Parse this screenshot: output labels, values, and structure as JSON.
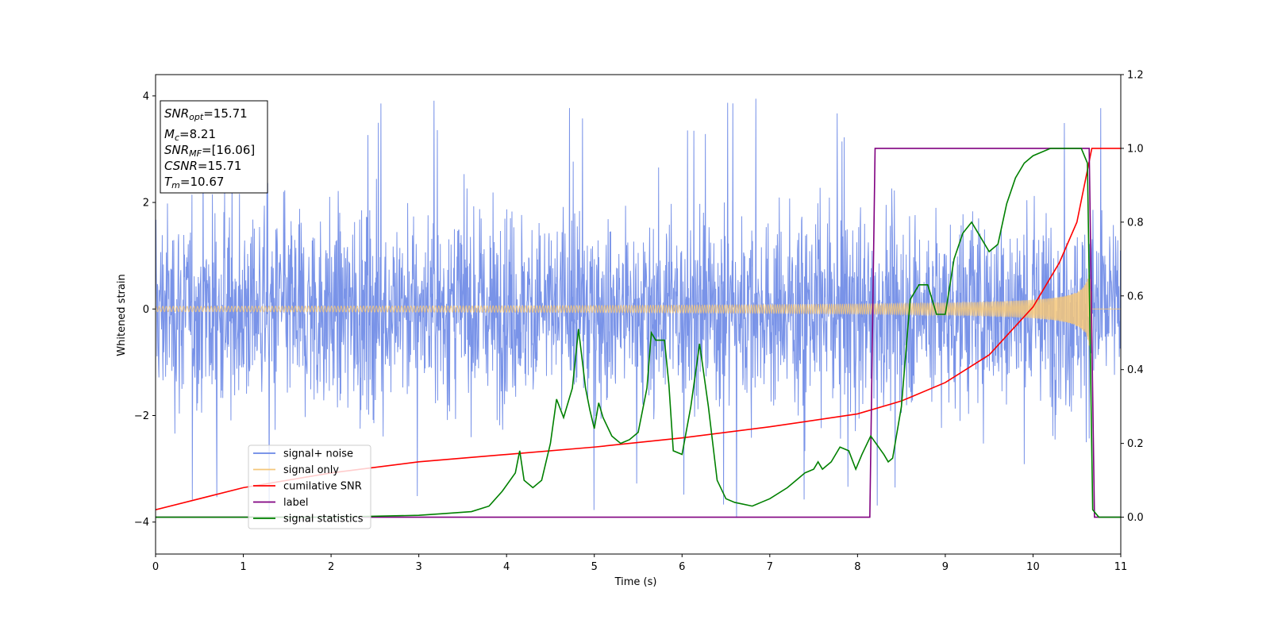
{
  "chart_data": {
    "type": "line",
    "xlabel": "Time (s)",
    "ylabel": "Whitened strain",
    "xlim": [
      0,
      11
    ],
    "ylim_left": [
      -4.6,
      4.4
    ],
    "ylim_right": [
      -0.1,
      1.2
    ],
    "x_ticks": [
      "0",
      "1",
      "2",
      "3",
      "4",
      "5",
      "6",
      "7",
      "8",
      "9",
      "10",
      "11"
    ],
    "y_ticks_left": [
      "−4",
      "−2",
      "0",
      "2",
      "4"
    ],
    "y_ticks_right": [
      "0.0",
      "0.2",
      "0.4",
      "0.6",
      "0.8",
      "1.0",
      "1.2"
    ],
    "info_box": [
      {
        "base": "SNR",
        "sub": "opt",
        "rest": "=15.71"
      },
      {
        "base": "M",
        "sub": "c",
        "rest": "=8.21"
      },
      {
        "base": "SNR",
        "sub": "MF",
        "rest": "=[16.06]"
      },
      {
        "base": "CSNR",
        "sub": "",
        "rest": "=15.71"
      },
      {
        "base": "T",
        "sub": "m",
        "rest": "=10.67"
      }
    ],
    "legend_position": "lower-left",
    "series": [
      {
        "name": "signal+ noise",
        "color": "#6a87e6",
        "axis": "left",
        "kind": "noise_band",
        "typical_amplitude": 1.3,
        "peak_amplitude": 4.0
      },
      {
        "name": "signal only",
        "color": "#f4c77a",
        "axis": "left",
        "kind": "chirp",
        "amplitude_start": 0.05,
        "amplitude_end": 1.1,
        "merger_time": 10.67
      },
      {
        "name": "cumilative SNR",
        "color": "#ff0000",
        "axis": "right",
        "x": [
          0,
          1,
          2,
          3,
          4,
          5,
          6,
          7,
          8,
          8.5,
          9,
          9.5,
          10,
          10.3,
          10.5,
          10.67,
          11
        ],
        "values": [
          0.02,
          0.08,
          0.12,
          0.15,
          0.17,
          0.19,
          0.215,
          0.245,
          0.28,
          0.315,
          0.365,
          0.44,
          0.57,
          0.69,
          0.8,
          1.0,
          1.0
        ]
      },
      {
        "name": "label",
        "color": "#800080",
        "axis": "right",
        "x": [
          0,
          8.14,
          8.2,
          10.64,
          10.7,
          11
        ],
        "values": [
          0.0,
          0.0,
          1.0,
          1.0,
          0.0,
          0.0
        ]
      },
      {
        "name": "signal statistics",
        "color": "#008000",
        "axis": "right",
        "x": [
          0,
          2.0,
          3.0,
          3.3,
          3.6,
          3.8,
          3.95,
          4.1,
          4.15,
          4.2,
          4.3,
          4.4,
          4.5,
          4.57,
          4.65,
          4.75,
          4.82,
          4.9,
          4.95,
          5.0,
          5.05,
          5.1,
          5.2,
          5.3,
          5.4,
          5.5,
          5.6,
          5.65,
          5.7,
          5.8,
          5.85,
          5.9,
          6.0,
          6.1,
          6.2,
          6.3,
          6.4,
          6.5,
          6.6,
          6.8,
          6.9,
          7.0,
          7.2,
          7.3,
          7.4,
          7.5,
          7.55,
          7.6,
          7.7,
          7.8,
          7.9,
          7.98,
          8.05,
          8.15,
          8.3,
          8.35,
          8.4,
          8.5,
          8.6,
          8.7,
          8.8,
          8.9,
          9.0,
          9.1,
          9.2,
          9.3,
          9.4,
          9.5,
          9.6,
          9.7,
          9.8,
          9.9,
          10.0,
          10.2,
          10.4,
          10.55,
          10.62,
          10.68,
          10.75,
          11
        ],
        "values": [
          0.0,
          0.0,
          0.005,
          0.01,
          0.015,
          0.03,
          0.07,
          0.12,
          0.18,
          0.1,
          0.08,
          0.1,
          0.2,
          0.32,
          0.27,
          0.35,
          0.51,
          0.35,
          0.29,
          0.24,
          0.31,
          0.27,
          0.22,
          0.2,
          0.21,
          0.23,
          0.35,
          0.5,
          0.48,
          0.48,
          0.36,
          0.18,
          0.17,
          0.3,
          0.47,
          0.3,
          0.1,
          0.05,
          0.04,
          0.03,
          0.04,
          0.05,
          0.08,
          0.1,
          0.12,
          0.13,
          0.15,
          0.13,
          0.15,
          0.19,
          0.18,
          0.13,
          0.17,
          0.22,
          0.17,
          0.15,
          0.16,
          0.3,
          0.59,
          0.63,
          0.63,
          0.55,
          0.55,
          0.7,
          0.77,
          0.8,
          0.76,
          0.72,
          0.74,
          0.85,
          0.92,
          0.96,
          0.98,
          1.0,
          1.0,
          1.0,
          0.96,
          0.02,
          0.0,
          0.0
        ]
      }
    ]
  }
}
